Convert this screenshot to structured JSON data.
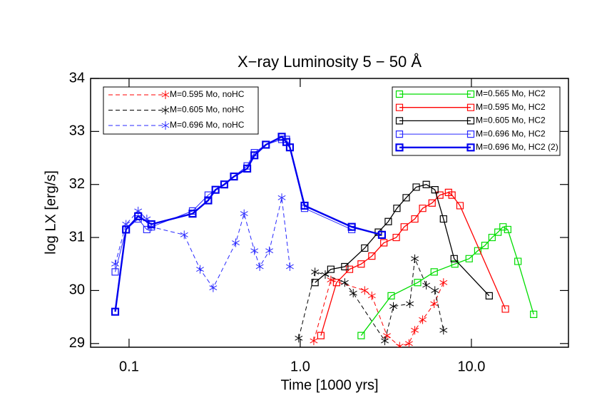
{
  "chart_data": {
    "type": "line",
    "title": "X−ray Luminosity   5 −  50 Å",
    "x_label": "Time [1000 yrs]",
    "y_label": "log LX [erg/s]",
    "x_scale": "log",
    "xlim": [
      0.0596,
      36.9
    ],
    "ylim": [
      28.93,
      34
    ],
    "xticks": [
      {
        "value": 0.1,
        "label": "0.1"
      },
      {
        "value": 1,
        "label": "1.0"
      },
      {
        "value": 10,
        "label": "10.0"
      }
    ],
    "yticks": [
      29,
      30,
      31,
      32,
      33,
      34
    ],
    "series": [
      {
        "name": "M=0.595 Mo, noHC",
        "color": "#ff0000",
        "style": "dashed",
        "marker": "asterisk",
        "width": 1,
        "legend": "left",
        "x": [
          1.2,
          1.51,
          2.38,
          2.62,
          3.21,
          3.81,
          4.32,
          4.67,
          5.19,
          6.06,
          6.87
        ],
        "values": [
          29.05,
          30.2,
          30.0,
          29.9,
          29.15,
          28.95,
          29.0,
          29.25,
          29.45,
          29.75,
          30.15
        ]
      },
      {
        "name": "M=0.605 Mo, noHC",
        "color": "#000000",
        "style": "dashed",
        "marker": "asterisk",
        "width": 1,
        "legend": "left",
        "x": [
          0.98,
          1.22,
          1.4,
          1.82,
          2.04,
          3.12,
          3.5,
          4.37,
          4.67,
          5.45,
          6.12,
          6.87
        ],
        "values": [
          29.1,
          30.35,
          30.3,
          30.15,
          29.95,
          29.05,
          29.7,
          29.75,
          30.6,
          30.1,
          30.0,
          29.25
        ]
      },
      {
        "name": "M=0.696 Mo, noHC",
        "color": "#2a2aff",
        "style": "dashed",
        "marker": "asterisk",
        "width": 1,
        "legend": "left",
        "x": [
          0.083,
          0.096,
          0.113,
          0.127,
          0.135,
          0.21,
          0.26,
          0.31,
          0.42,
          0.47,
          0.54,
          0.58,
          0.66,
          0.78,
          0.87
        ],
        "values": [
          30.5,
          31.25,
          31.5,
          31.35,
          31.2,
          31.05,
          30.4,
          30.05,
          30.9,
          31.45,
          30.75,
          30.45,
          30.75,
          31.75,
          30.45
        ]
      },
      {
        "name": "M=0.565 Mo, HC2",
        "color": "#00dd00",
        "style": "solid",
        "marker": "square",
        "width": 1.3,
        "legend": "right",
        "x": [
          2.27,
          3.4,
          4.85,
          6.06,
          8.0,
          9.7,
          10.9,
          12.0,
          13.2,
          14.3,
          15.3,
          16.3,
          18.7,
          23.1
        ],
        "values": [
          29.15,
          29.9,
          30.15,
          30.35,
          30.5,
          30.6,
          30.75,
          30.85,
          31.0,
          31.1,
          31.2,
          31.15,
          30.55,
          29.55
        ]
      },
      {
        "name": "M=0.595 Mo, HC2",
        "color": "#ff0000",
        "style": "solid",
        "marker": "square",
        "width": 1.3,
        "legend": "right",
        "x": [
          1.32,
          1.63,
          1.94,
          2.27,
          2.62,
          3.08,
          3.64,
          4.05,
          4.67,
          5.19,
          5.89,
          6.54,
          7.35,
          7.7,
          8.58,
          15.8
        ],
        "values": [
          29.15,
          30.15,
          30.4,
          30.5,
          30.65,
          30.9,
          31.0,
          31.2,
          31.35,
          31.55,
          31.65,
          31.8,
          31.85,
          31.8,
          31.6,
          29.65
        ]
      },
      {
        "name": "M=0.605 Mo, HC2",
        "color": "#000000",
        "style": "solid",
        "marker": "square",
        "width": 1.3,
        "legend": "right",
        "x": [
          1.22,
          1.51,
          1.82,
          2.38,
          2.86,
          3.27,
          3.67,
          4.16,
          4.76,
          5.45,
          6.12,
          6.87,
          7.93,
          12.7
        ],
        "values": [
          30.15,
          30.4,
          30.45,
          30.8,
          31.1,
          31.3,
          31.55,
          31.75,
          31.95,
          32.0,
          31.9,
          31.35,
          30.6,
          29.9
        ]
      },
      {
        "name": "M=0.696 Mo, HC2",
        "color": "#2a2aff",
        "style": "solid",
        "marker": "square",
        "width": 1,
        "legend": "right",
        "x": [
          0.083,
          0.096,
          0.113,
          0.127,
          0.135,
          0.235,
          0.29,
          0.32,
          0.36,
          0.41,
          0.49,
          0.54,
          0.63,
          0.78,
          0.83,
          0.87,
          1.06,
          2.0
        ],
        "values": [
          30.35,
          31.15,
          31.35,
          31.15,
          31.2,
          31.5,
          31.8,
          31.9,
          32.0,
          32.15,
          32.35,
          32.6,
          32.75,
          32.85,
          32.85,
          32.7,
          31.55,
          31.15
        ]
      },
      {
        "name": "M=0.696 Mo, HC2  (2)",
        "color": "#0000ee",
        "style": "solid",
        "marker": "square",
        "width": 2.4,
        "legend": "right",
        "x": [
          0.083,
          0.096,
          0.113,
          0.135,
          0.235,
          0.29,
          0.32,
          0.36,
          0.41,
          0.49,
          0.54,
          0.63,
          0.78,
          0.83,
          0.87,
          1.06,
          2.0,
          3.0
        ],
        "values": [
          29.6,
          31.15,
          31.4,
          31.25,
          31.45,
          31.7,
          31.9,
          32.0,
          32.15,
          32.3,
          32.55,
          32.75,
          32.9,
          32.8,
          32.7,
          31.6,
          31.2,
          31.05
        ]
      }
    ]
  }
}
